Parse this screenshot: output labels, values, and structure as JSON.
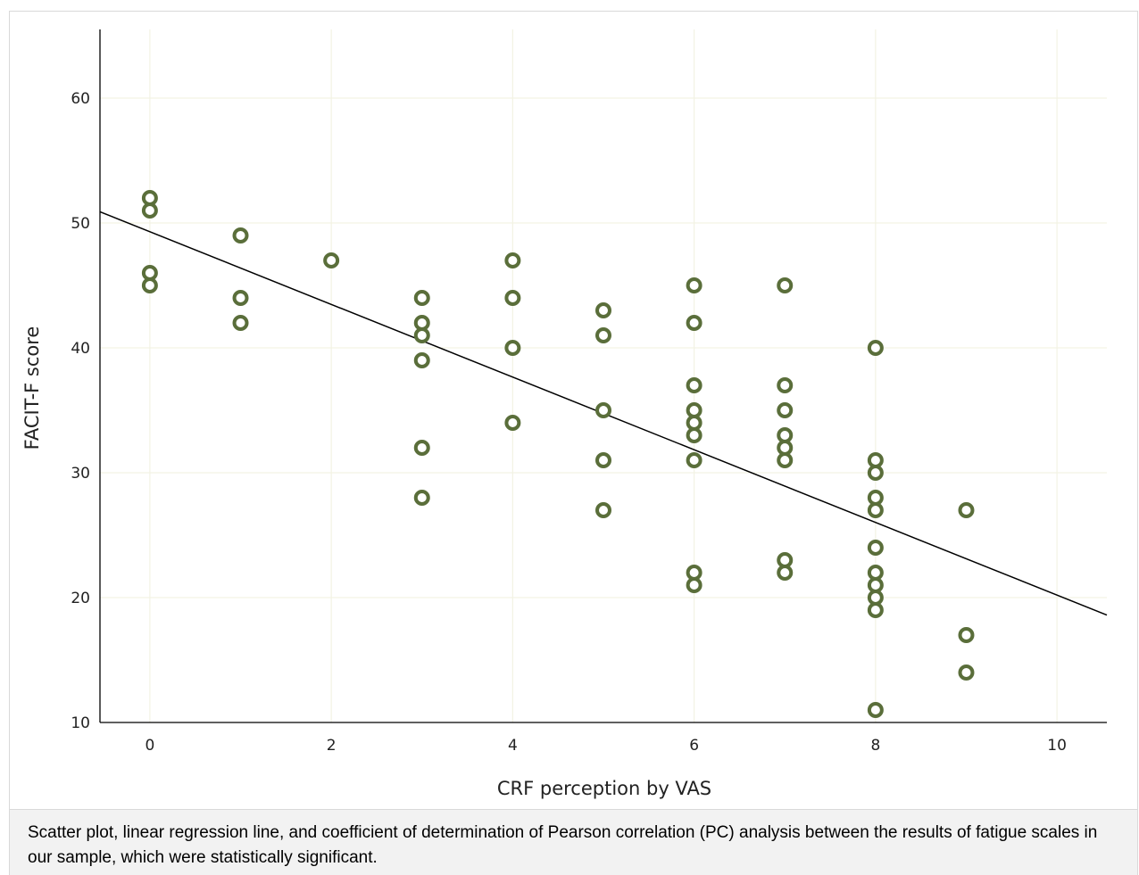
{
  "chart_data": {
    "type": "scatter",
    "xlabel": "CRF perception by VAS",
    "ylabel": "FACIT-F score",
    "xlim": [
      -0.55,
      10.55
    ],
    "ylim": [
      10,
      65.5
    ],
    "xticks": [
      0,
      2,
      4,
      6,
      8,
      10
    ],
    "yticks": [
      10,
      20,
      30,
      40,
      50,
      60
    ],
    "grid": true,
    "marker_color": "#5a6e3a",
    "line_color": "#000000",
    "points": [
      [
        0,
        52
      ],
      [
        0,
        51
      ],
      [
        0,
        46
      ],
      [
        0,
        45
      ],
      [
        1,
        49
      ],
      [
        1,
        44
      ],
      [
        1,
        42
      ],
      [
        2,
        47
      ],
      [
        3,
        44
      ],
      [
        3,
        42
      ],
      [
        3,
        41
      ],
      [
        3,
        39
      ],
      [
        3,
        32
      ],
      [
        3,
        28
      ],
      [
        4,
        47
      ],
      [
        4,
        44
      ],
      [
        4,
        40
      ],
      [
        4,
        34
      ],
      [
        5,
        43
      ],
      [
        5,
        41
      ],
      [
        5,
        35
      ],
      [
        5,
        31
      ],
      [
        5,
        27
      ],
      [
        6,
        45
      ],
      [
        6,
        42
      ],
      [
        6,
        37
      ],
      [
        6,
        35
      ],
      [
        6,
        34
      ],
      [
        6,
        33
      ],
      [
        6,
        31
      ],
      [
        6,
        22
      ],
      [
        6,
        21
      ],
      [
        7,
        45
      ],
      [
        7,
        37
      ],
      [
        7,
        35
      ],
      [
        7,
        33
      ],
      [
        7,
        32
      ],
      [
        7,
        31
      ],
      [
        7,
        23
      ],
      [
        7,
        22
      ],
      [
        8,
        40
      ],
      [
        8,
        31
      ],
      [
        8,
        30
      ],
      [
        8,
        28
      ],
      [
        8,
        27
      ],
      [
        8,
        24
      ],
      [
        8,
        22
      ],
      [
        8,
        21
      ],
      [
        8,
        20
      ],
      [
        8,
        19
      ],
      [
        8,
        11
      ],
      [
        9,
        27
      ],
      [
        9,
        17
      ],
      [
        9,
        14
      ]
    ],
    "regression_line": {
      "x": [
        -0.55,
        10.55
      ],
      "y": [
        50.9,
        18.6
      ]
    }
  },
  "caption": "Scatter plot, linear regression line, and coefficient of determination of Pearson correlation (PC) analysis between the results of fatigue scales in our sample, which were statistically significant."
}
